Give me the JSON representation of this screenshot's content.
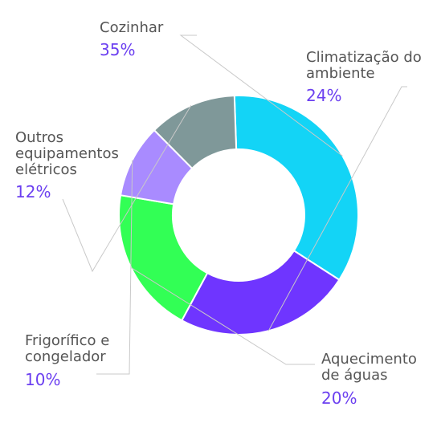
{
  "chart_data": {
    "type": "pie",
    "style": "donut",
    "slices": [
      {
        "label_lines": [
          "Cozinhar"
        ],
        "value": 35,
        "value_label": "35%",
        "color": "#13d4f6"
      },
      {
        "label_lines": [
          "Climatização do",
          "ambiente"
        ],
        "value": 24,
        "value_label": "24%",
        "color": "#6f35ff"
      },
      {
        "label_lines": [
          "Aquecimento",
          "de águas"
        ],
        "value": 20,
        "value_label": "20%",
        "color": "#32ff55"
      },
      {
        "label_lines": [
          "Frigorífico e",
          "congelador"
        ],
        "value": 10,
        "value_label": "10%",
        "color": "#a98bff"
      },
      {
        "label_lines": [
          "Outros",
          "equipamentos",
          "elétricos"
        ],
        "value": 12,
        "value_label": "12%",
        "color": "#7f9899"
      }
    ],
    "legend": "none"
  }
}
